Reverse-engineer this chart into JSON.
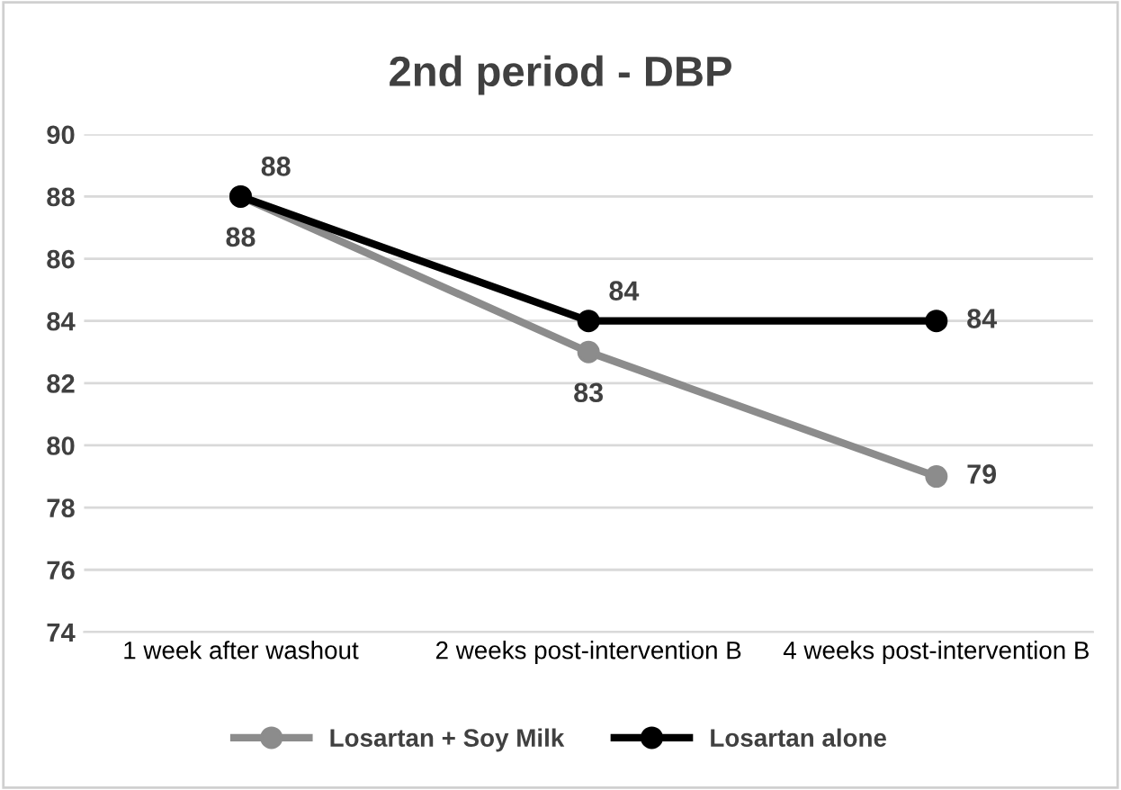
{
  "chart_data": {
    "type": "line",
    "title": "2nd period - DBP",
    "categories": [
      "1 week after washout",
      "2 weeks post-intervention B",
      "4 weeks post-intervention B"
    ],
    "series": [
      {
        "name": "Losartan + Soy Milk",
        "color": "#8c8c8c",
        "values": [
          88,
          83,
          79
        ]
      },
      {
        "name": "Losartan alone",
        "color": "#000000",
        "values": [
          88,
          84,
          84
        ]
      }
    ],
    "ylim": [
      74,
      90
    ],
    "yticks": [
      74,
      76,
      78,
      80,
      82,
      84,
      86,
      88,
      90
    ],
    "grid": "y",
    "legend": "bottom",
    "marker": "circle",
    "line_style": "solid",
    "data_labels": true
  }
}
